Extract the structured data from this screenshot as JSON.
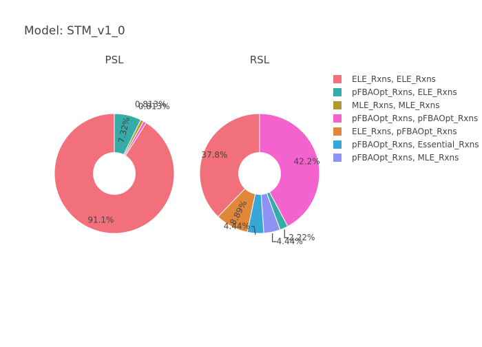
{
  "chart_data": {
    "type": "pie",
    "title": "Model: STM_v1_0",
    "hole": 0.35,
    "legend_position": "right",
    "series_order": [
      {
        "label": "ELE_Rxns, ELE_Rxns",
        "color": "#f2707c"
      },
      {
        "label": "pFBAOpt_Rxns, ELE_Rxns",
        "color": "#36aca8"
      },
      {
        "label": "MLE_Rxns, MLE_Rxns",
        "color": "#b09a2e"
      },
      {
        "label": "pFBAOpt_Rxns, pFBAOpt_Rxns",
        "color": "#f462ce"
      },
      {
        "label": "ELE_Rxns, pFBAOpt_Rxns",
        "color": "#e1873a"
      },
      {
        "label": "pFBAOpt_Rxns, Essential_Rxns",
        "color": "#36a7d6"
      },
      {
        "label": "pFBAOpt_Rxns, MLE_Rxns",
        "color": "#8c93f5"
      }
    ],
    "pies": [
      {
        "name": "PSL",
        "slices": [
          {
            "label": "pFBAOpt_Rxns, ELE_Rxns",
            "value": 7.32,
            "text": "7.32%"
          },
          {
            "label": "MLE_Rxns, MLE_Rxns",
            "value": 0.813,
            "text": "0.813%"
          },
          {
            "label": "pFBAOpt_Rxns, pFBAOpt_Rxns",
            "value": 0.813,
            "text": "0.813%"
          },
          {
            "label": "ELE_Rxns, ELE_Rxns",
            "value": 91.1,
            "text": "91.1%"
          }
        ]
      },
      {
        "name": "RSL",
        "slices": [
          {
            "label": "pFBAOpt_Rxns, pFBAOpt_Rxns",
            "value": 42.2,
            "text": "42.2%"
          },
          {
            "label": "pFBAOpt_Rxns, ELE_Rxns",
            "value": 2.22,
            "text": "2.22%"
          },
          {
            "label": "pFBAOpt_Rxns, MLE_Rxns",
            "value": 4.44,
            "text": "4.44%"
          },
          {
            "label": "pFBAOpt_Rxns, Essential_Rxns",
            "value": 4.44,
            "text": "4.44%"
          },
          {
            "label": "ELE_Rxns, pFBAOpt_Rxns",
            "value": 8.89,
            "text": "8.89%"
          },
          {
            "label": "ELE_Rxns, ELE_Rxns",
            "value": 37.8,
            "text": "37.8%"
          }
        ]
      }
    ]
  }
}
